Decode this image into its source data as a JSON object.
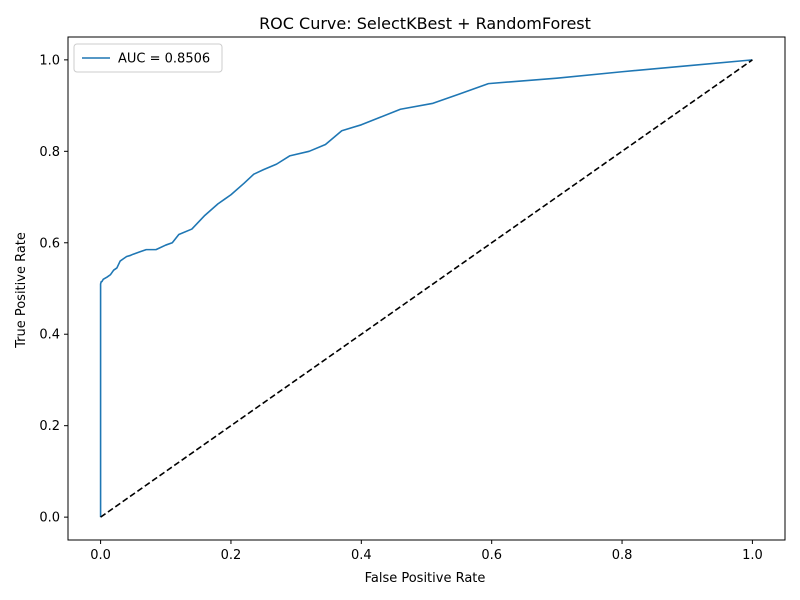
{
  "chart_data": {
    "type": "line",
    "title": "ROC Curve: SelectKBest + RandomForest",
    "xlabel": "False Positive Rate",
    "ylabel": "True Positive Rate",
    "xlim": [
      -0.05,
      1.05
    ],
    "ylim": [
      -0.05,
      1.05
    ],
    "xticks": [
      0.0,
      0.2,
      0.4,
      0.6,
      0.8,
      1.0
    ],
    "yticks": [
      0.0,
      0.2,
      0.4,
      0.6,
      0.8,
      1.0
    ],
    "xtick_labels": [
      "0.0",
      "0.2",
      "0.4",
      "0.6",
      "0.8",
      "1.0"
    ],
    "ytick_labels": [
      "0.0",
      "0.2",
      "0.4",
      "0.6",
      "0.8",
      "1.0"
    ],
    "grid": false,
    "legend": {
      "placement": "upper-left",
      "entries": [
        "AUC = 0.8506"
      ]
    },
    "series": [
      {
        "name": "AUC = 0.8506",
        "color": "#1f77b4",
        "style": "solid",
        "x": [
          0.0,
          0.0,
          0.0,
          0.001,
          0.002,
          0.004,
          0.01,
          0.015,
          0.02,
          0.025,
          0.03,
          0.035,
          0.04,
          0.045,
          0.05,
          0.06,
          0.07,
          0.085,
          0.1,
          0.11,
          0.12,
          0.14,
          0.16,
          0.18,
          0.19,
          0.2,
          0.22,
          0.235,
          0.25,
          0.27,
          0.29,
          0.32,
          0.345,
          0.37,
          0.4,
          0.43,
          0.46,
          0.51,
          0.55,
          0.595,
          0.7,
          0.8,
          0.9,
          1.0
        ],
        "y": [
          0.0,
          0.47,
          0.51,
          0.515,
          0.515,
          0.52,
          0.525,
          0.53,
          0.54,
          0.545,
          0.56,
          0.565,
          0.57,
          0.572,
          0.575,
          0.58,
          0.585,
          0.585,
          0.595,
          0.6,
          0.618,
          0.63,
          0.66,
          0.685,
          0.695,
          0.705,
          0.73,
          0.75,
          0.76,
          0.772,
          0.79,
          0.8,
          0.815,
          0.845,
          0.858,
          0.875,
          0.892,
          0.905,
          0.925,
          0.948,
          0.96,
          0.974,
          0.987,
          1.0
        ]
      },
      {
        "name": "",
        "color": "#000000",
        "style": "dashed",
        "x": [
          0.0,
          1.0
        ],
        "y": [
          0.0,
          1.0
        ]
      }
    ]
  }
}
